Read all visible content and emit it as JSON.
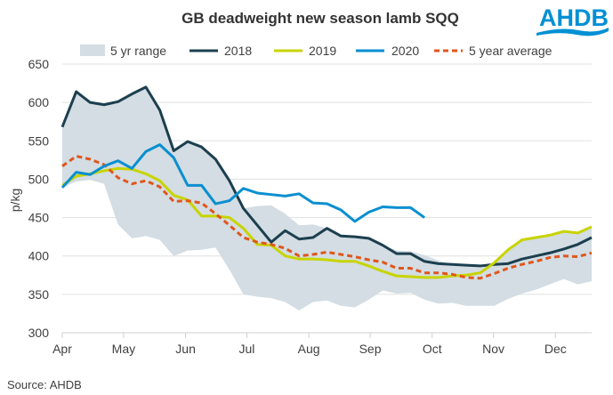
{
  "logo": {
    "text": "AHDB",
    "color": "#0090d4"
  },
  "chart_data": {
    "type": "line",
    "title": "GB deadweight new season lamb SQQ",
    "xlabel": "",
    "ylabel": "p/kg",
    "ylim": [
      300,
      650
    ],
    "yticks": [
      300,
      350,
      400,
      450,
      500,
      550,
      600,
      650
    ],
    "x_unit": "week index from start of April",
    "xlim": [
      0,
      38
    ],
    "xticks": [
      {
        "label": "Apr",
        "week": 0
      },
      {
        "label": "May",
        "week": 4.4
      },
      {
        "label": "Jun",
        "week": 8.85
      },
      {
        "label": "Jul",
        "week": 13.25
      },
      {
        "label": "Aug",
        "week": 17.7
      },
      {
        "label": "Sep",
        "week": 22.1
      },
      {
        "label": "Oct",
        "week": 26.55
      },
      {
        "label": "Nov",
        "week": 30.95
      },
      {
        "label": "Dec",
        "week": 35.4
      }
    ],
    "grid": "horizontal",
    "legend_position": "top",
    "range": {
      "name": "5 yr range",
      "color": "#d3dde3",
      "upper": [
        568,
        614,
        600,
        597,
        601,
        611,
        620,
        590,
        537,
        549,
        542,
        526,
        498,
        462,
        465,
        466,
        455,
        440,
        441,
        436,
        428,
        426,
        423,
        414,
        407,
        406,
        401,
        394,
        389,
        388,
        387,
        390,
        408,
        421,
        424,
        427,
        432,
        430,
        438
      ],
      "lower": [
        489,
        497,
        499,
        494,
        441,
        423,
        426,
        421,
        400,
        407,
        408,
        411,
        382,
        350,
        347,
        345,
        340,
        329,
        340,
        342,
        335,
        333,
        343,
        355,
        351,
        352,
        343,
        338,
        339,
        335,
        335,
        335,
        344,
        351,
        356,
        363,
        370,
        363,
        367
      ]
    },
    "series": [
      {
        "name": "2018",
        "color": "#1c3f4f",
        "dash": false,
        "values": [
          568,
          614,
          600,
          597,
          601,
          611,
          620,
          590,
          537,
          549,
          542,
          526,
          498,
          462,
          440,
          418,
          433,
          422,
          424,
          436,
          426,
          425,
          423,
          414,
          403,
          403,
          393,
          390,
          389,
          388,
          387,
          389,
          390,
          396,
          400,
          404,
          409,
          415,
          424
        ]
      },
      {
        "name": "2019",
        "color": "#c8d400",
        "dash": false,
        "values": [
          492,
          504,
          507,
          511,
          514,
          513,
          507,
          498,
          479,
          473,
          452,
          452,
          450,
          436,
          415,
          414,
          400,
          396,
          396,
          395,
          393,
          393,
          387,
          380,
          374,
          373,
          372,
          372,
          374,
          375,
          378,
          391,
          408,
          421,
          424,
          427,
          432,
          430,
          438
        ]
      },
      {
        "name": "2020",
        "color": "#0a8fd0",
        "dash": false,
        "values": [
          489,
          509,
          506,
          517,
          524,
          514,
          536,
          545,
          528,
          492,
          492,
          468,
          472,
          488,
          482,
          480,
          478,
          481,
          469,
          468,
          460,
          445,
          457,
          464,
          463,
          463,
          450
        ]
      },
      {
        "name": "5 year average",
        "color": "#e0561c",
        "dash": true,
        "values": [
          517,
          530,
          526,
          519,
          502,
          494,
          498,
          490,
          471,
          472,
          469,
          455,
          440,
          424,
          418,
          415,
          410,
          400,
          402,
          405,
          402,
          399,
          395,
          392,
          384,
          384,
          378,
          378,
          376,
          372,
          371,
          377,
          384,
          389,
          393,
          398,
          400,
          399,
          404
        ]
      }
    ],
    "source": "Source: AHDB"
  }
}
